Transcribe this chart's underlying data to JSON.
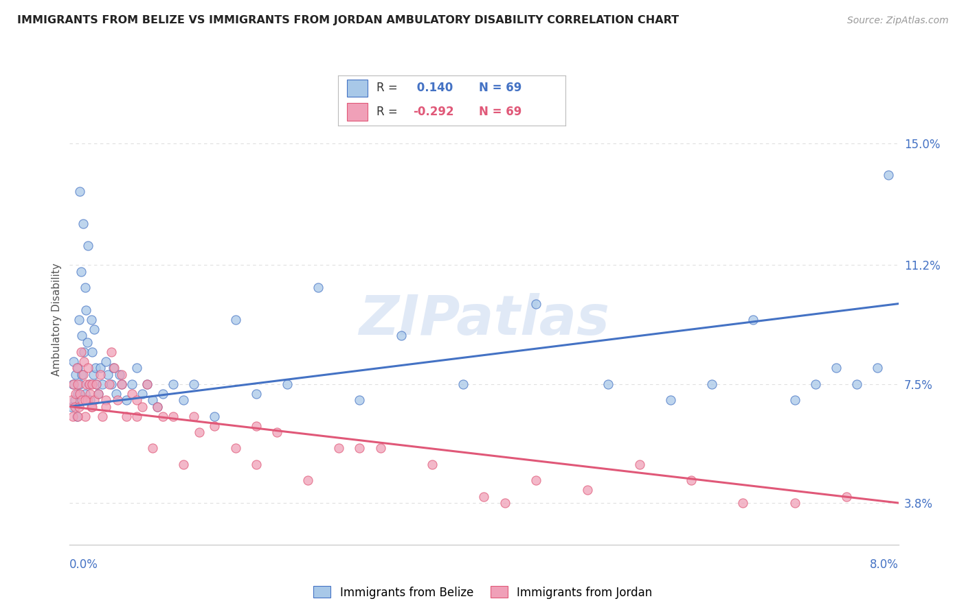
{
  "title": "IMMIGRANTS FROM BELIZE VS IMMIGRANTS FROM JORDAN AMBULATORY DISABILITY CORRELATION CHART",
  "source": "Source: ZipAtlas.com",
  "xlim": [
    0.0,
    8.0
  ],
  "ylim": [
    2.5,
    16.5
  ],
  "ytick_vals": [
    3.8,
    7.5,
    11.2,
    15.0
  ],
  "ytick_labels": [
    "3.8%",
    "7.5%",
    "11.2%",
    "15.0%"
  ],
  "belize_color": "#a8c8e8",
  "jordan_color": "#f0a0b8",
  "belize_line_color": "#4472c4",
  "jordan_line_color": "#e05878",
  "belize_R": "0.140",
  "jordan_R": "-0.292",
  "N": "69",
  "belize_x": [
    0.02,
    0.03,
    0.04,
    0.05,
    0.06,
    0.07,
    0.08,
    0.08,
    0.09,
    0.1,
    0.1,
    0.11,
    0.12,
    0.12,
    0.13,
    0.14,
    0.15,
    0.15,
    0.16,
    0.17,
    0.18,
    0.19,
    0.2,
    0.21,
    0.22,
    0.23,
    0.24,
    0.25,
    0.26,
    0.28,
    0.3,
    0.32,
    0.35,
    0.37,
    0.4,
    0.42,
    0.45,
    0.48,
    0.5,
    0.55,
    0.6,
    0.65,
    0.7,
    0.75,
    0.8,
    0.85,
    0.9,
    1.0,
    1.1,
    1.2,
    1.4,
    1.6,
    1.8,
    2.1,
    2.4,
    2.8,
    3.2,
    3.8,
    4.5,
    5.2,
    5.8,
    6.2,
    6.6,
    7.0,
    7.2,
    7.4,
    7.6,
    7.8,
    7.9
  ],
  "belize_y": [
    6.8,
    7.5,
    8.2,
    7.0,
    7.8,
    6.5,
    7.2,
    8.0,
    9.5,
    13.5,
    7.5,
    11.0,
    7.8,
    9.0,
    12.5,
    8.5,
    7.2,
    10.5,
    9.8,
    8.8,
    11.8,
    7.5,
    7.0,
    9.5,
    8.5,
    7.8,
    9.2,
    8.0,
    7.5,
    7.2,
    8.0,
    7.5,
    8.2,
    7.8,
    7.5,
    8.0,
    7.2,
    7.8,
    7.5,
    7.0,
    7.5,
    8.0,
    7.2,
    7.5,
    7.0,
    6.8,
    7.2,
    7.5,
    7.0,
    7.5,
    6.5,
    9.5,
    7.2,
    7.5,
    10.5,
    7.0,
    9.0,
    7.5,
    10.0,
    7.5,
    7.0,
    7.5,
    9.5,
    7.0,
    7.5,
    8.0,
    7.5,
    8.0,
    14.0
  ],
  "jordan_x": [
    0.02,
    0.03,
    0.04,
    0.05,
    0.06,
    0.07,
    0.08,
    0.09,
    0.1,
    0.11,
    0.12,
    0.13,
    0.14,
    0.15,
    0.16,
    0.17,
    0.18,
    0.19,
    0.2,
    0.21,
    0.22,
    0.24,
    0.26,
    0.28,
    0.3,
    0.32,
    0.35,
    0.38,
    0.4,
    0.43,
    0.46,
    0.5,
    0.55,
    0.6,
    0.65,
    0.7,
    0.75,
    0.8,
    0.9,
    1.0,
    1.1,
    1.25,
    1.4,
    1.6,
    1.8,
    2.0,
    2.3,
    2.6,
    3.0,
    3.5,
    4.0,
    4.5,
    5.0,
    5.5,
    6.0,
    6.5,
    7.0,
    7.5,
    0.08,
    0.15,
    0.22,
    0.35,
    0.5,
    0.65,
    0.85,
    1.2,
    1.8,
    2.8,
    4.2
  ],
  "jordan_y": [
    7.0,
    6.5,
    7.5,
    6.8,
    7.2,
    8.0,
    7.5,
    6.8,
    7.2,
    8.5,
    7.0,
    7.8,
    8.2,
    6.5,
    7.5,
    7.0,
    8.0,
    7.5,
    7.2,
    6.8,
    7.5,
    7.0,
    7.5,
    7.2,
    7.8,
    6.5,
    7.0,
    7.5,
    8.5,
    8.0,
    7.0,
    7.5,
    6.5,
    7.2,
    7.0,
    6.8,
    7.5,
    5.5,
    6.5,
    6.5,
    5.0,
    6.0,
    6.2,
    5.5,
    5.0,
    6.0,
    4.5,
    5.5,
    5.5,
    5.0,
    4.0,
    4.5,
    4.2,
    5.0,
    4.5,
    3.8,
    3.8,
    4.0,
    6.5,
    7.0,
    6.8,
    6.8,
    7.8,
    6.5,
    6.8,
    6.5,
    6.2,
    5.5,
    3.8
  ],
  "watermark": "ZIPatlas",
  "grid_color": "#e0e0e0",
  "bg_color": "#ffffff",
  "ylabel": "Ambulatory Disability"
}
